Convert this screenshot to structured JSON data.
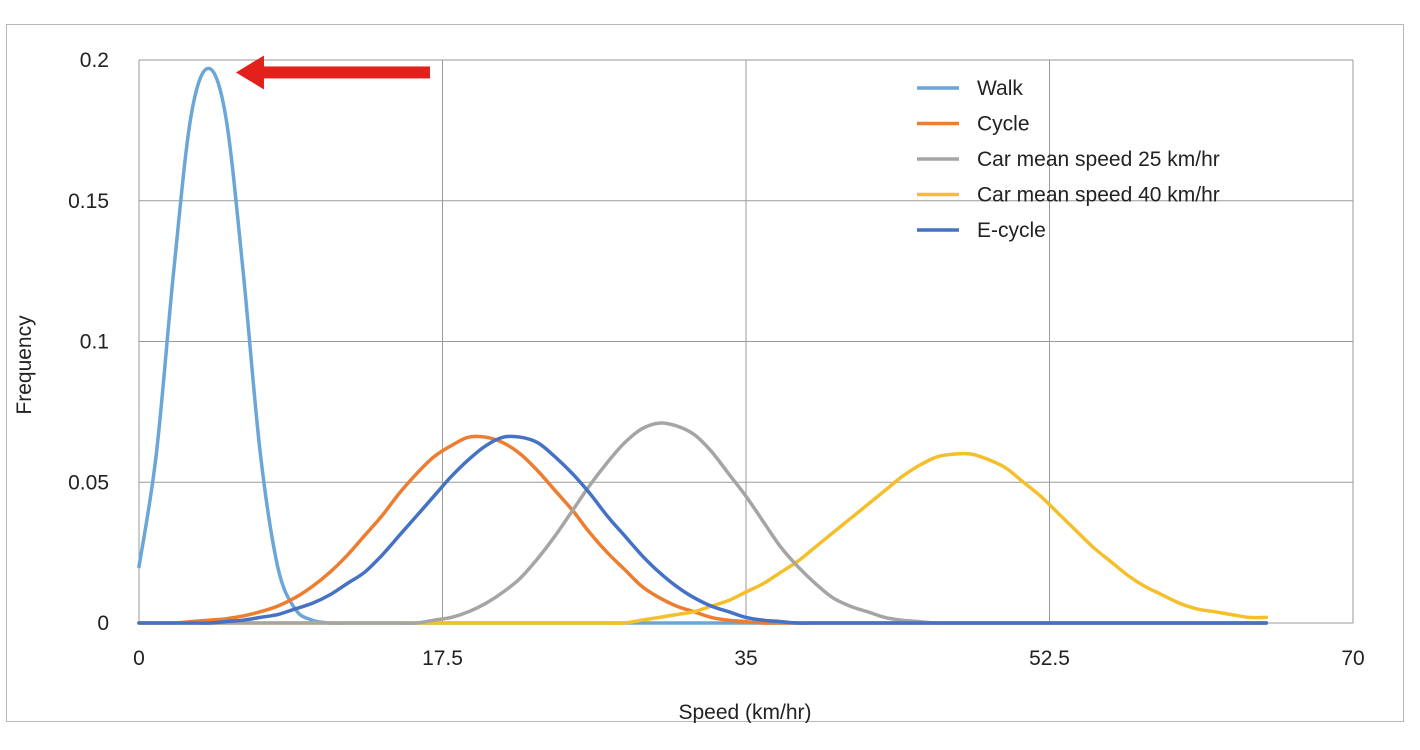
{
  "chart_data": {
    "type": "line",
    "title": "",
    "xlabel": "Speed (km/hr)",
    "ylabel": "Frequency",
    "xlim": [
      0,
      70
    ],
    "ylim": [
      0,
      0.2
    ],
    "x_ticks": [
      "0",
      "17.5",
      "35",
      "52.5",
      "70"
    ],
    "y_ticks": [
      "0",
      "0.05",
      "0.1",
      "0.15",
      "0.2"
    ],
    "grid": true,
    "legend_position": "top-right",
    "annotation": {
      "type": "arrow",
      "color": "#e3211c",
      "points_to": {
        "x": 4.9,
        "y": 0.197
      }
    },
    "x": [
      0,
      1,
      2,
      3,
      4,
      5,
      6,
      7,
      8,
      9,
      10,
      11,
      12,
      13,
      14,
      15,
      16,
      17,
      18,
      19,
      20,
      21,
      22,
      23,
      24,
      25,
      26,
      27,
      28,
      29,
      30,
      31,
      32,
      33,
      34,
      35,
      36,
      37,
      38,
      39,
      40,
      41,
      42,
      43,
      44,
      45,
      46,
      47,
      48,
      49,
      50,
      51,
      52,
      53,
      54,
      55,
      56,
      57,
      58,
      59,
      60,
      61,
      62,
      63,
      64,
      65
    ],
    "series": [
      {
        "name": "Walk",
        "color": "#6aa6d8",
        "values": [
          0.02,
          0.06,
          0.125,
          0.18,
          0.197,
          0.18,
          0.125,
          0.06,
          0.02,
          0.005,
          0.001,
          0,
          0,
          0,
          0,
          0,
          0,
          0,
          0,
          0,
          0,
          0,
          0,
          0,
          0,
          0,
          0,
          0,
          0,
          0,
          0,
          0,
          0,
          0,
          0,
          0,
          0,
          0,
          0,
          0,
          0,
          0,
          0,
          0,
          0,
          0,
          0,
          0,
          0,
          0,
          0,
          0,
          0,
          0,
          0,
          0,
          0,
          0,
          0,
          0,
          0,
          0,
          0,
          0,
          0,
          0
        ]
      },
      {
        "name": "Cycle",
        "color": "#ed7d31",
        "values": [
          0,
          0,
          0,
          0.0005,
          0.001,
          0.0015,
          0.0025,
          0.004,
          0.006,
          0.009,
          0.013,
          0.018,
          0.024,
          0.031,
          0.038,
          0.046,
          0.053,
          0.059,
          0.063,
          0.066,
          0.066,
          0.064,
          0.06,
          0.054,
          0.047,
          0.04,
          0.032,
          0.025,
          0.019,
          0.013,
          0.009,
          0.006,
          0.004,
          0.002,
          0.001,
          0.0005,
          0,
          0,
          0,
          0,
          0,
          0,
          0,
          0,
          0,
          0,
          0,
          0,
          0,
          0,
          0,
          0,
          0,
          0,
          0,
          0,
          0,
          0,
          0,
          0,
          0,
          0,
          0,
          0,
          0,
          0
        ]
      },
      {
        "name": "Car mean speed 25 km/hr",
        "color": "#a5a5a5",
        "values": [
          0,
          0,
          0,
          0,
          0,
          0,
          0,
          0,
          0,
          0,
          0,
          0,
          0,
          0,
          0,
          0,
          0,
          0.001,
          0.002,
          0.004,
          0.007,
          0.011,
          0.016,
          0.023,
          0.031,
          0.04,
          0.049,
          0.057,
          0.064,
          0.069,
          0.071,
          0.07,
          0.067,
          0.061,
          0.053,
          0.045,
          0.036,
          0.027,
          0.02,
          0.014,
          0.009,
          0.006,
          0.004,
          0.002,
          0.001,
          0.0005,
          0,
          0,
          0,
          0,
          0,
          0,
          0,
          0,
          0,
          0,
          0,
          0,
          0,
          0,
          0,
          0,
          0,
          0,
          0,
          0
        ]
      },
      {
        "name": "Car mean speed 40 km/hr",
        "color": "#f5bf2c",
        "values": [
          0,
          0,
          0,
          0,
          0,
          0,
          0,
          0,
          0,
          0,
          0,
          0,
          0,
          0,
          0,
          0,
          0,
          0,
          0,
          0,
          0,
          0,
          0,
          0,
          0,
          0,
          0,
          0,
          0,
          0.001,
          0.002,
          0.003,
          0.004,
          0.006,
          0.008,
          0.011,
          0.014,
          0.018,
          0.022,
          0.027,
          0.032,
          0.037,
          0.042,
          0.047,
          0.052,
          0.056,
          0.059,
          0.06,
          0.06,
          0.058,
          0.055,
          0.05,
          0.045,
          0.039,
          0.033,
          0.027,
          0.022,
          0.017,
          0.013,
          0.01,
          0.007,
          0.005,
          0.004,
          0.003,
          0.002,
          0.002
        ]
      },
      {
        "name": "E-cycle",
        "color": "#4472c4",
        "values": [
          0,
          0,
          0,
          0,
          0,
          0.0005,
          0.001,
          0.002,
          0.003,
          0.005,
          0.007,
          0.01,
          0.014,
          0.018,
          0.024,
          0.031,
          0.038,
          0.045,
          0.052,
          0.058,
          0.063,
          0.066,
          0.066,
          0.064,
          0.059,
          0.053,
          0.046,
          0.038,
          0.031,
          0.024,
          0.018,
          0.013,
          0.009,
          0.006,
          0.004,
          0.002,
          0.001,
          0.0005,
          0,
          0,
          0,
          0,
          0,
          0,
          0,
          0,
          0,
          0,
          0,
          0,
          0,
          0,
          0,
          0,
          0,
          0,
          0,
          0,
          0,
          0,
          0,
          0,
          0,
          0,
          0,
          0
        ]
      }
    ]
  }
}
